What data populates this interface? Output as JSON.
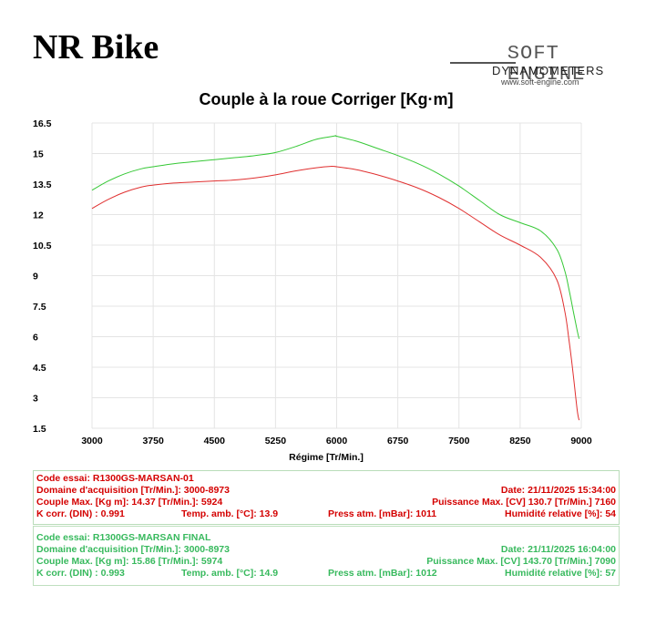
{
  "header": {
    "brand": "NR Bike",
    "logo": {
      "line1": "SOFT ENGINE",
      "line2": "DYNAMOMETERS",
      "line3": "www.soft-engine.com"
    }
  },
  "chart_data": {
    "type": "line",
    "title": "Couple à la roue Corriger [Kg·m]",
    "xlabel": "Régime [Tr/Min.]",
    "ylabel": "",
    "xlim": [
      3000,
      9000
    ],
    "ylim": [
      1.5,
      16.5
    ],
    "xticks": [
      "3000",
      "3750",
      "4500",
      "5250",
      "6000",
      "6750",
      "7500",
      "8250",
      "9000"
    ],
    "yticks": [
      "16.5",
      "15",
      "13.5",
      "12",
      "10.5",
      "9",
      "7.5",
      "6",
      "4.5",
      "3",
      "1.5"
    ],
    "grid": true,
    "legend": "none",
    "series": [
      {
        "name": "",
        "color": "#e03030",
        "x": [
          3000,
          3200,
          3400,
          3600,
          3750,
          4000,
          4250,
          4500,
          4750,
          5000,
          5250,
          5500,
          5750,
          5924,
          6000,
          6250,
          6500,
          6750,
          7000,
          7250,
          7500,
          7750,
          8000,
          8250,
          8500,
          8700,
          8800,
          8850,
          8900,
          8950,
          8973
        ],
        "y": [
          12.3,
          12.75,
          13.1,
          13.35,
          13.45,
          13.55,
          13.6,
          13.65,
          13.7,
          13.8,
          13.95,
          14.15,
          14.3,
          14.37,
          14.35,
          14.2,
          13.95,
          13.65,
          13.3,
          12.85,
          12.3,
          11.65,
          11.0,
          10.5,
          9.9,
          8.8,
          7.2,
          5.8,
          4.2,
          2.4,
          1.9
        ]
      },
      {
        "name": "",
        "color": "#35c835",
        "x": [
          3000,
          3200,
          3400,
          3600,
          3750,
          4000,
          4250,
          4500,
          4750,
          5000,
          5250,
          5500,
          5750,
          5974,
          6000,
          6250,
          6500,
          6750,
          7000,
          7250,
          7500,
          7750,
          8000,
          8250,
          8500,
          8700,
          8800,
          8850,
          8900,
          8950,
          8973
        ],
        "y": [
          13.2,
          13.65,
          14.0,
          14.25,
          14.35,
          14.5,
          14.6,
          14.7,
          14.8,
          14.9,
          15.05,
          15.35,
          15.7,
          15.86,
          15.85,
          15.6,
          15.25,
          14.9,
          14.5,
          14.0,
          13.4,
          12.7,
          12.0,
          11.6,
          11.2,
          10.3,
          9.2,
          8.3,
          7.3,
          6.3,
          5.9
        ]
      }
    ]
  },
  "run1": {
    "color": "#d40000",
    "code": "Code essai: R1300GS-MARSAN-01",
    "domaine": "Domaine d'acquisition [Tr/Min.]: 3000-8973",
    "date": "Date: 21/11/2025   15:34:00",
    "couple": "Couple Max. [Kg m]: 14.37   [Tr/Min.]: 5924",
    "puissance": "Puissance Max. [CV]  130.7   [Tr/Min.]  7160",
    "kcorr": "K corr. (DIN) : 0.991",
    "temp": "Temp. amb. [°C]: 13.9",
    "press": "Press atm. [mBar]: 1011",
    "humid": "Humidité relative [%]: 54"
  },
  "run2": {
    "color": "#22b24c",
    "code": "Code essai: R1300GS-MARSAN FINAL",
    "domaine": "Domaine d'acquisition [Tr/Min.]: 3000-8973",
    "date": "Date: 21/11/2025   16:04:00",
    "couple": "Couple Max. [Kg m]: 15.86   [Tr/Min.]: 5974",
    "puissance": "Puissance Max. [CV]  143.70   [Tr/Min.]  7090",
    "kcorr": "K corr. (DIN) : 0.993",
    "temp": "Temp. amb. [°C]: 14.9",
    "press": "Press atm. [mBar]: 1012",
    "humid": "Humidité relative [%]: 57"
  }
}
